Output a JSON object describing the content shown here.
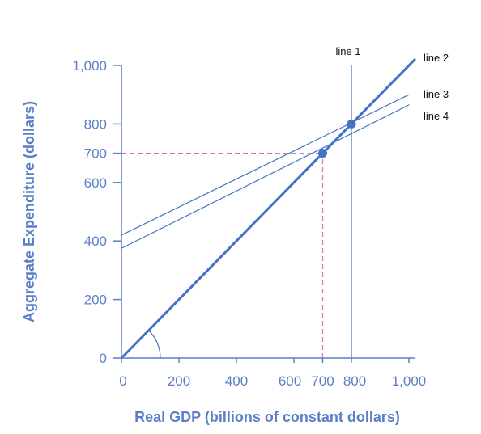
{
  "chart_data": {
    "type": "line",
    "xlabel": "Real GDP (billions of constant dollars)",
    "ylabel": "Aggregate Expenditure (dollars)",
    "xlim": [
      0,
      1000
    ],
    "ylim": [
      0,
      1000
    ],
    "x_ticks": [
      "0",
      "200",
      "400",
      "600",
      "700",
      "800",
      "1,000"
    ],
    "x_tick_values": [
      0,
      200,
      400,
      600,
      700,
      800,
      1000
    ],
    "y_ticks": [
      "0",
      "200",
      "400",
      "600",
      "700",
      "800",
      "1,000"
    ],
    "y_tick_values": [
      0,
      200,
      400,
      600,
      700,
      800,
      1000
    ],
    "grid": false,
    "series": [
      {
        "name": "line 1",
        "kind": "vertical",
        "x": [
          800,
          800
        ],
        "y": [
          0,
          1000
        ]
      },
      {
        "name": "line 2",
        "kind": "45-degree",
        "x": [
          0,
          1020
        ],
        "y": [
          0,
          1020
        ]
      },
      {
        "name": "line 3",
        "kind": "aggregate-expenditure",
        "x": [
          0,
          1000
        ],
        "y": [
          420,
          900
        ]
      },
      {
        "name": "line 4",
        "kind": "aggregate-expenditure",
        "x": [
          0,
          1000
        ],
        "y": [
          375,
          865
        ]
      }
    ],
    "points": [
      {
        "x": 700,
        "y": 700
      },
      {
        "x": 800,
        "y": 800
      }
    ],
    "guides": [
      {
        "from": [
          0,
          700
        ],
        "to": [
          700,
          700
        ]
      },
      {
        "from": [
          700,
          0
        ],
        "to": [
          700,
          700
        ]
      }
    ],
    "colors": {
      "axis": "#5b7fc6",
      "series": "#4472c4",
      "guide": "#e36db5",
      "label": "#111111"
    }
  }
}
